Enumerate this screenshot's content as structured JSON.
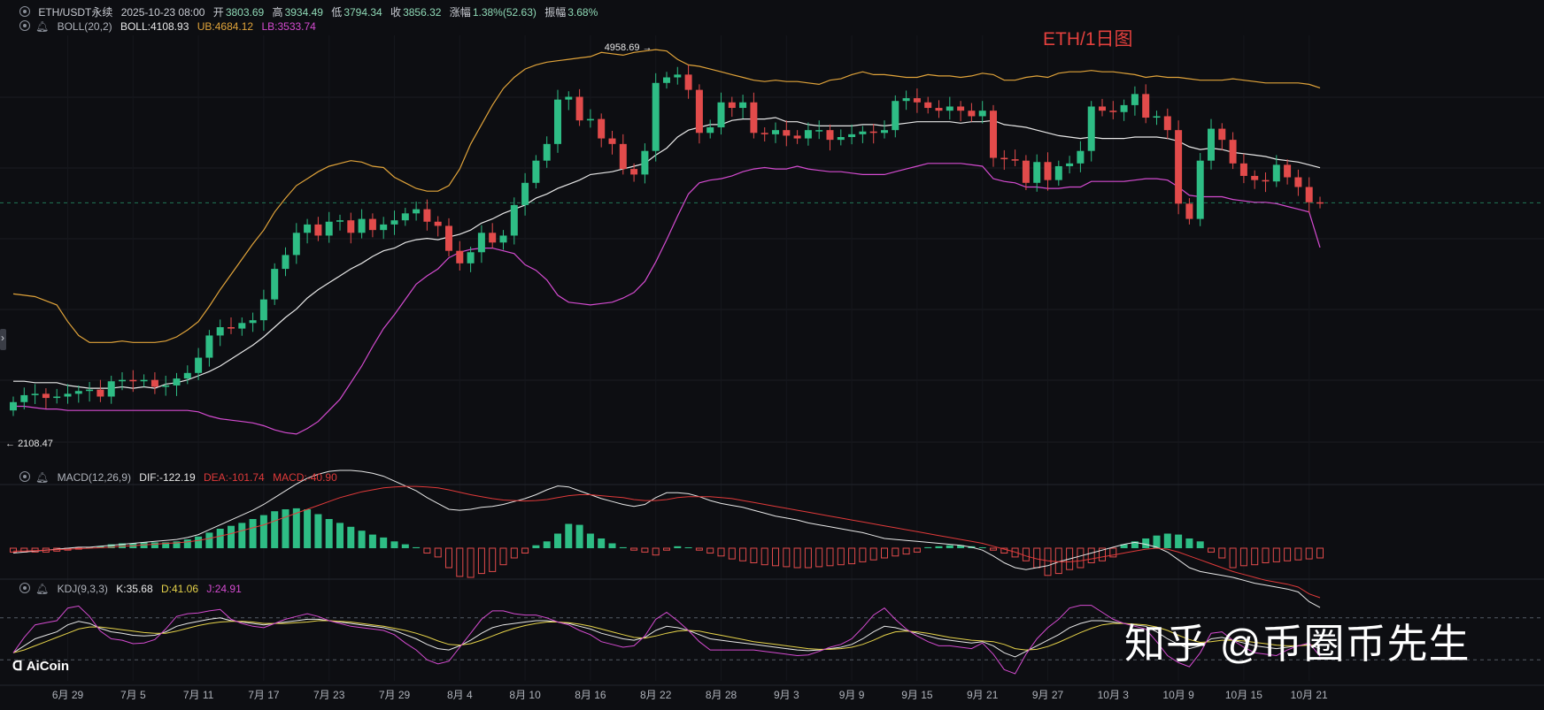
{
  "chart_data": {
    "type": "candlestick",
    "title": "ETH/1日图",
    "symbol_info": {
      "symbol": "ETH/USDT永续",
      "datetime": "2025-10-23 08:00",
      "open_label": "开",
      "open": "3803.69",
      "high_label": "高",
      "high": "3934.49",
      "low_label": "低",
      "low": "3794.34",
      "close_label": "收",
      "close": "3856.32",
      "change_label": "涨幅",
      "change": "1.38%(52.63)",
      "amplitude_label": "振幅",
      "amplitude": "3.68%"
    },
    "boll": {
      "label": "BOLL(20,2)",
      "mid": "BOLL:4108.93",
      "ub": "UB:4684.12",
      "lb": "LB:3533.74"
    },
    "macd_legend": {
      "label": "MACD(12,26,9)",
      "dif": "DIF:-122.19",
      "dea": "DEA:-101.74",
      "macd": "MACD:-40.90"
    },
    "kdj_legend": {
      "label": "KDJ(9,3,3)",
      "k": "K:35.68",
      "d": "D:41.06",
      "j": "J:24.91"
    },
    "max_marker": "4958.69",
    "min_marker": "2108.47",
    "ylim": [
      2100,
      5050
    ],
    "xlabels": [
      {
        "i": 5,
        "t": "6月 29"
      },
      {
        "i": 11,
        "t": "7月 5"
      },
      {
        "i": 17,
        "t": "7月 11"
      },
      {
        "i": 23,
        "t": "7月 17"
      },
      {
        "i": 29,
        "t": "7月 23"
      },
      {
        "i": 35,
        "t": "7月 29"
      },
      {
        "i": 41,
        "t": "8月 4"
      },
      {
        "i": 47,
        "t": "8月 10"
      },
      {
        "i": 53,
        "t": "8月 16"
      },
      {
        "i": 59,
        "t": "8月 22"
      },
      {
        "i": 65,
        "t": "8月 28"
      },
      {
        "i": 71,
        "t": "9月 3"
      },
      {
        "i": 77,
        "t": "9月 9"
      },
      {
        "i": 83,
        "t": "9月 15"
      },
      {
        "i": 89,
        "t": "9月 21"
      },
      {
        "i": 95,
        "t": "9月 27"
      },
      {
        "i": 101,
        "t": "10月 3"
      },
      {
        "i": 107,
        "t": "10月 9"
      },
      {
        "i": 113,
        "t": "10月 15"
      },
      {
        "i": 119,
        "t": "10月 21"
      }
    ],
    "close": [
      2420,
      2470,
      2480,
      2450,
      2460,
      2480,
      2500,
      2510,
      2460,
      2570,
      2580,
      2570,
      2580,
      2530,
      2540,
      2590,
      2630,
      2740,
      2900,
      2960,
      2950,
      2990,
      3010,
      3160,
      3380,
      3480,
      3640,
      3700,
      3620,
      3720,
      3730,
      3640,
      3740,
      3660,
      3700,
      3730,
      3780,
      3810,
      3720,
      3690,
      3510,
      3420,
      3500,
      3640,
      3570,
      3620,
      3840,
      4000,
      4160,
      4280,
      4600,
      4620,
      4450,
      4460,
      4320,
      4280,
      4100,
      4060,
      4230,
      4720,
      4760,
      4780,
      4670,
      4360,
      4400,
      4580,
      4540,
      4580,
      4360,
      4350,
      4380,
      4340,
      4320,
      4380,
      4380,
      4310,
      4330,
      4350,
      4370,
      4360,
      4380,
      4590,
      4610,
      4580,
      4540,
      4520,
      4550,
      4520,
      4480,
      4520,
      4180,
      4170,
      4160,
      4000,
      4150,
      4020,
      4120,
      4140,
      4230,
      4550,
      4520,
      4510,
      4560,
      4640,
      4470,
      4480,
      4380,
      3850,
      3740,
      4160,
      4390,
      4310,
      4140,
      4050,
      4020,
      4010,
      4130,
      4040,
      3970,
      3860,
      3856
    ],
    "boll_ub": [
      3200,
      3190,
      3180,
      3150,
      3120,
      3000,
      2900,
      2850,
      2850,
      2850,
      2860,
      2850,
      2850,
      2850,
      2860,
      2890,
      2940,
      3000,
      3110,
      3230,
      3340,
      3450,
      3560,
      3660,
      3790,
      3890,
      3980,
      4030,
      4080,
      4120,
      4140,
      4160,
      4150,
      4120,
      4110,
      4040,
      4000,
      3960,
      3940,
      3940,
      3980,
      4100,
      4280,
      4420,
      4560,
      4680,
      4760,
      4820,
      4850,
      4870,
      4880,
      4890,
      4900,
      4910,
      4940,
      4930,
      4920,
      4940,
      4950,
      4960,
      4950,
      4890,
      4850,
      4840,
      4820,
      4800,
      4780,
      4760,
      4740,
      4730,
      4740,
      4730,
      4730,
      4720,
      4710,
      4740,
      4750,
      4780,
      4800,
      4780,
      4780,
      4770,
      4760,
      4760,
      4780,
      4770,
      4770,
      4760,
      4770,
      4790,
      4780,
      4740,
      4740,
      4760,
      4770,
      4760,
      4790,
      4800,
      4800,
      4810,
      4800,
      4800,
      4790,
      4780,
      4760,
      4770,
      4760,
      4760,
      4750,
      4740,
      4740,
      4740,
      4750,
      4740,
      4730,
      4720,
      4720,
      4720,
      4720,
      4710,
      4684
    ],
    "boll_mid": [
      2570,
      2570,
      2560,
      2560,
      2560,
      2540,
      2530,
      2520,
      2520,
      2520,
      2530,
      2520,
      2530,
      2520,
      2550,
      2560,
      2580,
      2610,
      2640,
      2680,
      2730,
      2780,
      2830,
      2890,
      2960,
      3030,
      3090,
      3170,
      3230,
      3280,
      3330,
      3380,
      3420,
      3470,
      3510,
      3530,
      3570,
      3590,
      3600,
      3590,
      3610,
      3630,
      3660,
      3710,
      3740,
      3780,
      3810,
      3840,
      3890,
      3920,
      3960,
      3990,
      4020,
      4060,
      4070,
      4080,
      4100,
      4120,
      4140,
      4200,
      4250,
      4330,
      4380,
      4400,
      4420,
      4420,
      4450,
      4460,
      4460,
      4460,
      4470,
      4440,
      4440,
      4420,
      4410,
      4410,
      4410,
      4410,
      4420,
      4420,
      4410,
      4420,
      4430,
      4440,
      4440,
      4440,
      4440,
      4430,
      4440,
      4440,
      4450,
      4420,
      4410,
      4400,
      4380,
      4360,
      4340,
      4330,
      4320,
      4330,
      4320,
      4320,
      4320,
      4330,
      4330,
      4330,
      4320,
      4300,
      4260,
      4240,
      4250,
      4240,
      4220,
      4210,
      4200,
      4190,
      4170,
      4160,
      4150,
      4130,
      4109
    ],
    "boll_lb": [
      2390,
      2390,
      2380,
      2370,
      2370,
      2360,
      2360,
      2360,
      2360,
      2360,
      2360,
      2360,
      2360,
      2360,
      2360,
      2360,
      2360,
      2350,
      2320,
      2300,
      2290,
      2280,
      2270,
      2250,
      2220,
      2200,
      2190,
      2230,
      2280,
      2360,
      2440,
      2560,
      2680,
      2820,
      2950,
      3050,
      3160,
      3270,
      3330,
      3380,
      3460,
      3500,
      3520,
      3530,
      3530,
      3510,
      3490,
      3410,
      3370,
      3300,
      3190,
      3140,
      3130,
      3120,
      3130,
      3140,
      3170,
      3210,
      3290,
      3430,
      3590,
      3760,
      3920,
      4000,
      4020,
      4030,
      4050,
      4080,
      4100,
      4110,
      4100,
      4100,
      4120,
      4100,
      4090,
      4080,
      4080,
      4070,
      4060,
      4060,
      4060,
      4080,
      4100,
      4120,
      4140,
      4140,
      4140,
      4140,
      4130,
      4120,
      4030,
      4010,
      4000,
      3970,
      3970,
      3960,
      3960,
      3970,
      3970,
      4010,
      4010,
      4010,
      4010,
      4020,
      4030,
      4030,
      4020,
      3970,
      3910,
      3900,
      3900,
      3900,
      3880,
      3870,
      3860,
      3860,
      3850,
      3830,
      3810,
      3790,
      3534
    ],
    "macd_dif": [
      -10,
      -8,
      -6,
      -4,
      -2,
      0,
      2,
      2,
      4,
      6,
      8,
      10,
      12,
      14,
      16,
      18,
      22,
      28,
      38,
      48,
      58,
      68,
      78,
      90,
      104,
      118,
      132,
      144,
      152,
      158,
      160,
      160,
      158,
      154,
      148,
      138,
      128,
      118,
      104,
      92,
      80,
      78,
      80,
      84,
      86,
      90,
      96,
      102,
      110,
      120,
      128,
      126,
      118,
      110,
      102,
      96,
      90,
      86,
      90,
      104,
      114,
      114,
      112,
      106,
      98,
      92,
      88,
      84,
      78,
      72,
      66,
      62,
      58,
      52,
      48,
      44,
      40,
      36,
      32,
      26,
      20,
      18,
      16,
      14,
      12,
      10,
      8,
      6,
      2,
      -4,
      -16,
      -30,
      -40,
      -44,
      -40,
      -36,
      -28,
      -22,
      -16,
      -10,
      -4,
      2,
      8,
      12,
      8,
      2,
      -8,
      -24,
      -40,
      -48,
      -52,
      -56,
      -60,
      -66,
      -72,
      -76,
      -80,
      -84,
      -90,
      -110,
      -122
    ],
    "macd_dea": [
      -6,
      -6,
      -5,
      -4,
      -3,
      -2,
      -1,
      0,
      1,
      2,
      4,
      5,
      7,
      8,
      10,
      11,
      13,
      16,
      20,
      25,
      30,
      36,
      42,
      48,
      56,
      64,
      72,
      80,
      88,
      96,
      104,
      110,
      116,
      120,
      124,
      126,
      127,
      127,
      126,
      124,
      120,
      115,
      110,
      106,
      102,
      99,
      98,
      97,
      98,
      100,
      104,
      108,
      110,
      110,
      108,
      106,
      104,
      100,
      98,
      98,
      100,
      104,
      106,
      106,
      106,
      104,
      102,
      98,
      94,
      90,
      86,
      82,
      78,
      74,
      70,
      66,
      62,
      58,
      54,
      50,
      46,
      42,
      38,
      34,
      30,
      26,
      22,
      18,
      14,
      10,
      4,
      -2,
      -8,
      -16,
      -22,
      -26,
      -28,
      -28,
      -26,
      -22,
      -18,
      -14,
      -10,
      -6,
      -2,
      0,
      -2,
      -8,
      -16,
      -24,
      -32,
      -40,
      -48,
      -54,
      -60,
      -66,
      -70,
      -74,
      -80,
      -94,
      -101.74
    ],
    "macd_hist": [
      -8,
      -8,
      -8,
      -8,
      -6,
      -4,
      -2,
      0,
      4,
      8,
      10,
      10,
      12,
      12,
      12,
      14,
      18,
      24,
      32,
      40,
      46,
      52,
      60,
      68,
      76,
      80,
      82,
      80,
      70,
      60,
      52,
      44,
      36,
      28,
      22,
      14,
      8,
      2,
      -10,
      -18,
      -40,
      -58,
      -60,
      -52,
      -48,
      -34,
      -20,
      -10,
      6,
      14,
      30,
      50,
      48,
      30,
      20,
      10,
      2,
      -4,
      -8,
      -14,
      -4,
      4,
      0,
      -4,
      -10,
      -16,
      -22,
      -26,
      -30,
      -34,
      -36,
      -38,
      -40,
      -40,
      -38,
      -36,
      -34,
      -32,
      -28,
      -24,
      -20,
      -16,
      -12,
      -8,
      2,
      4,
      6,
      6,
      4,
      0,
      -4,
      -10,
      -18,
      -26,
      -40,
      -56,
      -52,
      -44,
      -40,
      -30,
      -26,
      -18,
      8,
      14,
      20,
      26,
      30,
      28,
      20,
      14,
      -8,
      -20,
      -40,
      -36,
      -34,
      -30,
      -28,
      -26,
      -24,
      -22,
      -20,
      -18,
      -16,
      -40.9
    ],
    "kdj_k": [
      30,
      40,
      50,
      55,
      60,
      70,
      75,
      72,
      65,
      60,
      58,
      55,
      54,
      55,
      60,
      68,
      72,
      75,
      78,
      80,
      76,
      74,
      72,
      70,
      72,
      74,
      76,
      78,
      78,
      76,
      74,
      72,
      70,
      68,
      66,
      62,
      56,
      50,
      42,
      36,
      34,
      40,
      48,
      58,
      66,
      70,
      72,
      74,
      76,
      76,
      74,
      72,
      68,
      64,
      58,
      54,
      50,
      48,
      52,
      62,
      68,
      66,
      62,
      56,
      50,
      48,
      46,
      44,
      42,
      40,
      38,
      36,
      34,
      33,
      34,
      36,
      38,
      42,
      50,
      60,
      68,
      66,
      62,
      58,
      54,
      50,
      48,
      46,
      44,
      46,
      40,
      30,
      24,
      32,
      40,
      48,
      56,
      66,
      72,
      76,
      76,
      74,
      72,
      70,
      68,
      60,
      50,
      42,
      36,
      40,
      50,
      52,
      48,
      44,
      40,
      38,
      36,
      38,
      40,
      42,
      35.68
    ],
    "kdj_d": [
      30,
      34,
      40,
      46,
      52,
      58,
      64,
      67,
      67,
      65,
      63,
      61,
      59,
      58,
      58,
      61,
      65,
      69,
      72,
      74,
      75,
      75,
      74,
      72,
      72,
      72,
      73,
      74,
      76,
      76,
      75,
      74,
      72,
      70,
      68,
      65,
      62,
      58,
      53,
      47,
      42,
      41,
      43,
      48,
      54,
      60,
      65,
      69,
      72,
      74,
      74,
      73,
      71,
      68,
      64,
      60,
      56,
      52,
      51,
      54,
      58,
      61,
      62,
      61,
      58,
      55,
      52,
      49,
      46,
      44,
      42,
      40,
      38,
      36,
      35,
      35,
      36,
      38,
      42,
      48,
      55,
      60,
      61,
      60,
      58,
      55,
      52,
      50,
      48,
      47,
      46,
      42,
      36,
      34,
      35,
      39,
      45,
      52,
      59,
      65,
      70,
      72,
      72,
      71,
      70,
      67,
      62,
      55,
      49,
      45,
      46,
      48,
      48,
      47,
      45,
      43,
      41,
      40,
      40,
      41,
      41.06
    ],
    "kdj_j": [
      30,
      52,
      70,
      73,
      76,
      94,
      97,
      82,
      61,
      50,
      48,
      43,
      44,
      49,
      64,
      82,
      86,
      87,
      90,
      92,
      78,
      72,
      68,
      66,
      72,
      78,
      82,
      86,
      82,
      76,
      72,
      68,
      66,
      64,
      62,
      56,
      44,
      34,
      20,
      14,
      18,
      38,
      58,
      78,
      90,
      90,
      86,
      84,
      84,
      80,
      74,
      70,
      62,
      56,
      46,
      42,
      38,
      40,
      54,
      78,
      88,
      76,
      62,
      46,
      34,
      34,
      34,
      34,
      34,
      32,
      30,
      28,
      26,
      27,
      32,
      38,
      42,
      50,
      66,
      84,
      94,
      78,
      64,
      54,
      46,
      40,
      40,
      38,
      36,
      44,
      28,
      6,
      0,
      28,
      50,
      66,
      78,
      94,
      98,
      98,
      88,
      78,
      72,
      68,
      64,
      46,
      26,
      16,
      10,
      30,
      58,
      60,
      48,
      38,
      30,
      28,
      26,
      34,
      40,
      44,
      24.91
    ]
  },
  "watermark": {
    "text": "知乎 @币圈币先生"
  },
  "logo": {
    "text": "AiCoin"
  },
  "colors": {
    "up": "#2ebd85",
    "down": "#e24b4b",
    "ub": "#e0a33a",
    "mid": "#e8e8e8",
    "lb": "#d44bd0",
    "dif": "#e8e8e8",
    "dea": "#e03a3a",
    "k": "#e8e8e8",
    "d": "#e6d34a",
    "j": "#d44bd0"
  }
}
